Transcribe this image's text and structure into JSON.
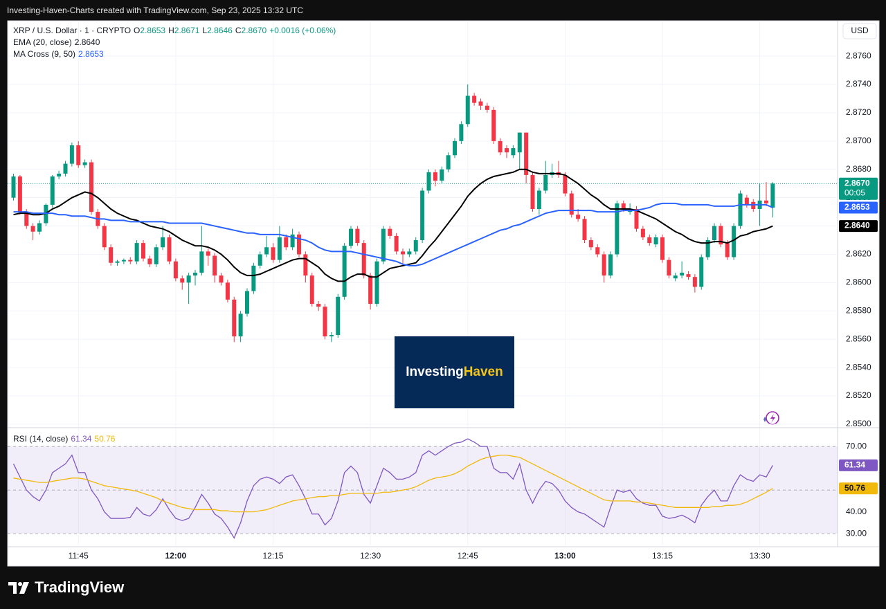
{
  "header": {
    "text": "Investing-Haven-Charts created with TradingView.com, Sep 23, 2025 13:32 UTC"
  },
  "chart_data": {
    "type": "candlestick",
    "legend": {
      "symbol": "XRP / U.S. Dollar · 1 · CRYPTO",
      "letters": [
        "O",
        "H",
        "L",
        "C"
      ],
      "close_label": "2.8670",
      "change": "+0.0016 (+0.06%)"
    },
    "currency": "USD",
    "countdown": "00:05",
    "up_color": "#089981",
    "down_color": "#f23645",
    "grid": true,
    "logo": {
      "first": "Investing",
      "second": "Haven"
    },
    "categories": [
      null,
      null,
      null,
      null,
      null,
      null,
      null,
      null,
      null,
      null,
      "11:45",
      null,
      null,
      null,
      null,
      null,
      null,
      null,
      null,
      null,
      null,
      null,
      null,
      null,
      null,
      "12:00",
      null,
      null,
      null,
      null,
      null,
      null,
      null,
      null,
      null,
      null,
      null,
      null,
      null,
      null,
      "12:15",
      null,
      null,
      null,
      null,
      null,
      null,
      null,
      null,
      null,
      null,
      null,
      null,
      null,
      null,
      "12:30",
      null,
      null,
      null,
      null,
      null,
      null,
      null,
      null,
      null,
      null,
      null,
      null,
      null,
      null,
      "12:45",
      null,
      null,
      null,
      null,
      null,
      null,
      null,
      null,
      null,
      null,
      null,
      null,
      null,
      null,
      "13:00",
      null,
      null,
      null,
      null,
      null,
      null,
      null,
      null,
      null,
      null,
      null,
      null,
      null,
      null,
      "13:15",
      null,
      null,
      null,
      null,
      null,
      null,
      null,
      null,
      null,
      null,
      null,
      null,
      null,
      null,
      "13:30",
      null,
      null
    ],
    "open": [
      2.866,
      2.8675,
      2.865,
      2.864,
      2.8636,
      2.8642,
      2.8655,
      2.8675,
      2.8677,
      2.8684,
      2.8697,
      2.8683,
      2.8685,
      2.865,
      2.864,
      2.8625,
      2.8614,
      2.8615,
      2.8616,
      2.8615,
      2.8628,
      2.8617,
      2.8613,
      2.8625,
      2.8632,
      2.8615,
      2.8603,
      2.86,
      2.8605,
      2.8607,
      2.8622,
      2.8619,
      2.8605,
      2.86,
      2.8588,
      2.8562,
      2.8578,
      2.8594,
      2.8612,
      2.862,
      2.8625,
      2.8616,
      2.8632,
      2.8625,
      2.8634,
      2.862,
      2.8605,
      2.8585,
      2.8583,
      2.8562,
      2.8563,
      2.859,
      2.8626,
      2.8638,
      2.8628,
      2.8605,
      2.8585,
      2.8615,
      2.8638,
      2.8633,
      2.8622,
      2.862,
      2.8622,
      2.863,
      2.8665,
      2.8678,
      2.8672,
      2.868,
      2.869,
      2.87,
      2.8712,
      2.8732,
      2.8728,
      2.8725,
      2.8722,
      2.87,
      2.8695,
      2.869,
      2.8692,
      2.8706,
      2.8676,
      2.8652,
      2.8665,
      2.8676,
      2.8678,
      2.8676,
      2.8663,
      2.8648,
      2.8645,
      2.863,
      2.8625,
      2.862,
      2.8605,
      2.862,
      2.8656,
      2.865,
      2.8652,
      2.8638,
      2.8632,
      2.8627,
      2.8632,
      2.8616,
      2.8603,
      2.8605,
      2.8606,
      2.8604,
      2.8597,
      2.8618,
      2.863,
      2.864,
      2.8628,
      2.8618,
      2.864,
      2.866,
      2.8657,
      2.8652,
      2.8658,
      2.8653
    ],
    "high": [
      2.8677,
      2.8676,
      2.8652,
      2.8642,
      2.8644,
      2.8656,
      2.8676,
      2.8679,
      2.8686,
      2.8699,
      2.87,
      2.8687,
      2.8687,
      2.8652,
      2.8642,
      2.8627,
      2.8616,
      2.8617,
      2.8618,
      2.863,
      2.863,
      2.8619,
      2.8627,
      2.864,
      2.8634,
      2.8617,
      2.8605,
      2.8607,
      2.8609,
      2.864,
      2.8624,
      2.8621,
      2.8607,
      2.8602,
      2.859,
      2.858,
      2.8596,
      2.8614,
      2.8622,
      2.8633,
      2.8628,
      2.864,
      2.8634,
      2.8638,
      2.8636,
      2.8622,
      2.8607,
      2.8587,
      2.8585,
      2.8565,
      2.8592,
      2.8628,
      2.864,
      2.864,
      2.863,
      2.8607,
      2.8617,
      2.864,
      2.864,
      2.8635,
      2.8624,
      2.8624,
      2.8632,
      2.8667,
      2.868,
      2.868,
      2.8682,
      2.8692,
      2.8702,
      2.8714,
      2.874,
      2.8734,
      2.873,
      2.8727,
      2.8724,
      2.8702,
      2.8697,
      2.8697,
      2.8706,
      2.8706,
      2.8678,
      2.8667,
      2.8686,
      2.8684,
      2.8686,
      2.8678,
      2.8665,
      2.8652,
      2.8647,
      2.8632,
      2.8627,
      2.8622,
      2.8622,
      2.8658,
      2.8658,
      2.8656,
      2.8654,
      2.864,
      2.8634,
      2.8634,
      2.8634,
      2.8618,
      2.8607,
      2.8615,
      2.8608,
      2.8606,
      2.862,
      2.8632,
      2.8642,
      2.8642,
      2.863,
      2.8642,
      2.8665,
      2.8662,
      2.8659,
      2.867,
      2.8671,
      2.8671
    ],
    "low": [
      2.8658,
      2.8648,
      2.8638,
      2.863,
      2.8634,
      2.864,
      2.8653,
      2.8673,
      2.8675,
      2.8682,
      2.8681,
      2.8681,
      2.8648,
      2.8638,
      2.8623,
      2.8612,
      2.8612,
      2.8613,
      2.8613,
      2.8613,
      2.8615,
      2.8611,
      2.8611,
      2.8623,
      2.8613,
      2.8601,
      2.8595,
      2.8585,
      2.8598,
      2.8605,
      2.8612,
      2.86,
      2.8598,
      2.8586,
      2.8558,
      2.8558,
      2.8576,
      2.8592,
      2.861,
      2.8618,
      2.8614,
      2.8614,
      2.8623,
      2.8623,
      2.8618,
      2.86,
      2.8583,
      2.858,
      2.856,
      2.8558,
      2.8561,
      2.8588,
      2.8624,
      2.8626,
      2.8603,
      2.8581,
      2.8583,
      2.8613,
      2.8631,
      2.862,
      2.8613,
      2.8618,
      2.862,
      2.8628,
      2.8663,
      2.8668,
      2.867,
      2.8678,
      2.8688,
      2.8698,
      2.871,
      2.8725,
      2.8722,
      2.872,
      2.8698,
      2.869,
      2.8688,
      2.8688,
      2.868,
      2.867,
      2.865,
      2.8648,
      2.8663,
      2.8674,
      2.8674,
      2.8661,
      2.8646,
      2.8643,
      2.8628,
      2.8623,
      2.8618,
      2.86,
      2.8603,
      2.8618,
      2.865,
      2.8648,
      2.8636,
      2.863,
      2.8626,
      2.8625,
      2.8614,
      2.8603,
      2.8601,
      2.8603,
      2.8602,
      2.8593,
      2.8595,
      2.8616,
      2.8628,
      2.8625,
      2.8616,
      2.8616,
      2.8638,
      2.8653,
      2.865,
      2.864,
      2.8654,
      2.8646
    ],
    "close": [
      2.8675,
      2.865,
      2.864,
      2.8636,
      2.8642,
      2.8655,
      2.8675,
      2.8677,
      2.8684,
      2.8697,
      2.8683,
      2.8685,
      2.865,
      2.864,
      2.8625,
      2.8614,
      2.8615,
      2.8616,
      2.8615,
      2.8628,
      2.8617,
      2.8613,
      2.8625,
      2.8632,
      2.8615,
      2.8603,
      2.86,
      2.8605,
      2.8607,
      2.8622,
      2.8619,
      2.8605,
      2.86,
      2.8588,
      2.8562,
      2.8578,
      2.8594,
      2.8612,
      2.862,
      2.8625,
      2.8616,
      2.8632,
      2.8625,
      2.8634,
      2.862,
      2.8605,
      2.8585,
      2.8583,
      2.8562,
      2.8563,
      2.859,
      2.8626,
      2.8638,
      2.8628,
      2.8605,
      2.8585,
      2.8615,
      2.8638,
      2.8633,
      2.8622,
      2.862,
      2.8622,
      2.863,
      2.8665,
      2.8678,
      2.8672,
      2.868,
      2.869,
      2.87,
      2.8712,
      2.8732,
      2.8727,
      2.8725,
      2.8722,
      2.87,
      2.8692,
      2.8692,
      2.8695,
      2.8706,
      2.8676,
      2.8652,
      2.8665,
      2.8676,
      2.8678,
      2.8676,
      2.8663,
      2.8648,
      2.8645,
      2.863,
      2.8625,
      2.862,
      2.8605,
      2.862,
      2.8656,
      2.8652,
      2.8652,
      2.8638,
      2.8632,
      2.8628,
      2.8632,
      2.8616,
      2.8605,
      2.8605,
      2.8607,
      2.8604,
      2.8597,
      2.8618,
      2.863,
      2.864,
      2.8627,
      2.8618,
      2.864,
      2.8663,
      2.8655,
      2.8652,
      2.8658,
      2.8656,
      2.867
    ],
    "overlays": [
      {
        "name": "EMA (20, close)",
        "color": "#000000",
        "last_value_label": "2.8640",
        "values": [
          2.8648,
          2.8649,
          2.8649,
          2.8648,
          2.8648,
          2.8649,
          2.8652,
          2.8654,
          2.8657,
          2.866,
          2.8662,
          2.8664,
          2.8663,
          2.866,
          2.8656,
          2.8652,
          2.8649,
          2.8647,
          2.8645,
          2.8644,
          2.8642,
          2.864,
          2.8639,
          2.8638,
          2.8636,
          2.8633,
          2.863,
          2.8628,
          2.8626,
          2.8626,
          2.8625,
          2.8623,
          2.862,
          2.8616,
          2.8611,
          2.8607,
          2.8605,
          2.8605,
          2.8606,
          2.8608,
          2.861,
          2.8612,
          2.8614,
          2.8616,
          2.8617,
          2.8617,
          2.8614,
          2.8611,
          2.8606,
          2.8603,
          2.8601,
          2.8601,
          2.8604,
          2.8606,
          2.8606,
          2.8604,
          2.8604,
          2.8607,
          2.861,
          2.8611,
          2.8612,
          2.8613,
          2.8614,
          2.8619,
          2.8625,
          2.863,
          2.8636,
          2.8642,
          2.8648,
          2.8654,
          2.8661,
          2.8666,
          2.867,
          2.8673,
          2.8675,
          2.8676,
          2.8677,
          2.8678,
          2.868,
          2.868,
          2.8678,
          2.8677,
          2.8677,
          2.8677,
          2.8677,
          2.8676,
          2.8673,
          2.867,
          2.8666,
          2.8662,
          2.8659,
          2.8655,
          2.8652,
          2.8652,
          2.8652,
          2.8652,
          2.8651,
          2.8649,
          2.8647,
          2.8645,
          2.8642,
          2.8639,
          2.8636,
          2.8634,
          2.8631,
          2.8629,
          2.8628,
          2.8628,
          2.8629,
          2.8629,
          2.8628,
          2.863,
          2.8633,
          2.8634,
          2.8636,
          2.8637,
          2.8638,
          2.864
        ]
      },
      {
        "name": "MA Cross (9, 50)",
        "color": "#2962ff",
        "values": [
          2.865,
          2.865,
          2.865,
          2.8649,
          2.8649,
          2.8649,
          2.8649,
          2.8648,
          2.8648,
          2.8647,
          2.8647,
          2.8647,
          2.8646,
          2.8645,
          2.8645,
          2.8644,
          2.8644,
          2.8644,
          2.8643,
          2.8643,
          2.8643,
          2.8643,
          2.8643,
          2.8643,
          2.8642,
          2.8642,
          2.8642,
          2.8642,
          2.8642,
          2.8642,
          2.8641,
          2.864,
          2.8639,
          2.8638,
          2.8637,
          2.8636,
          2.8635,
          2.8635,
          2.8634,
          2.8634,
          2.8634,
          2.8634,
          2.8633,
          2.8632,
          2.8631,
          2.863,
          2.8628,
          2.8625,
          2.8623,
          2.8622,
          2.8622,
          2.8622,
          2.8622,
          2.8621,
          2.862,
          2.8619,
          2.8618,
          2.8617,
          2.8616,
          2.8615,
          2.8613,
          2.8612,
          2.8612,
          2.8613,
          2.8615,
          2.8617,
          2.8619,
          2.8621,
          2.8623,
          2.8625,
          2.8627,
          2.8629,
          2.8631,
          2.8633,
          2.8635,
          2.8637,
          2.8638,
          2.864,
          2.8641,
          2.8643,
          2.8645,
          2.8647,
          2.8649,
          2.865,
          2.8651,
          2.8651,
          2.8651,
          2.8651,
          2.8651,
          2.8651,
          2.865,
          2.865,
          2.865,
          2.865,
          2.8651,
          2.8651,
          2.8651,
          2.8652,
          2.8653,
          2.8655,
          2.8656,
          2.8656,
          2.8656,
          2.8655,
          2.8655,
          2.8655,
          2.8655,
          2.8655,
          2.8654,
          2.8654,
          2.8654,
          2.8654,
          2.8655,
          2.8655,
          2.8655,
          2.8655,
          2.8655,
          2.8653
        ]
      }
    ],
    "ylim": [
      2.8498,
      2.8785
    ],
    "yticks": [
      {
        "value": 2.85,
        "label": "2.8500"
      },
      {
        "value": 2.852,
        "label": "2.8520"
      },
      {
        "value": 2.854,
        "label": "2.8540"
      },
      {
        "value": 2.856,
        "label": "2.8560"
      },
      {
        "value": 2.858,
        "label": "2.8580"
      },
      {
        "value": 2.86,
        "label": "2.8600"
      },
      {
        "value": 2.862,
        "label": "2.8620"
      },
      {
        "value": 2.864,
        "label": "2.8640"
      },
      {
        "value": 2.866,
        "label": "2.8660"
      },
      {
        "value": 2.868,
        "label": "2.8680"
      },
      {
        "value": 2.87,
        "label": "2.8700"
      },
      {
        "value": 2.872,
        "label": "2.8720"
      },
      {
        "value": 2.874,
        "label": "2.8740"
      },
      {
        "value": 2.876,
        "label": "2.8760"
      }
    ],
    "rsi": {
      "type": "line",
      "title": "RSI (14, close)",
      "ylim": [
        24,
        78.3
      ],
      "yticks": [
        {
          "value": 70,
          "label": "70.00"
        },
        {
          "value": 40,
          "label": "40.00"
        },
        {
          "value": 30,
          "label": "30.00"
        }
      ],
      "levels": [
        70,
        50,
        30
      ],
      "band": [
        30,
        70
      ],
      "series": [
        {
          "color": "#7e57c2",
          "values": [
            62,
            56,
            50,
            47,
            45,
            50,
            58,
            60,
            62,
            66,
            58,
            58,
            50,
            46,
            40,
            37,
            37,
            37,
            37.5,
            42,
            39,
            38,
            41,
            46,
            41,
            37,
            36,
            37,
            42,
            48,
            44,
            39,
            37,
            33,
            28,
            35,
            45,
            52,
            55,
            56,
            55,
            53,
            56,
            57,
            52,
            46,
            39,
            39,
            34,
            37,
            45,
            58,
            61,
            58,
            48,
            44,
            52,
            60,
            58,
            55,
            55,
            56,
            58,
            66,
            68,
            66,
            68,
            70,
            71.5,
            72,
            73.5,
            72,
            70,
            70,
            60,
            58,
            58,
            55,
            62,
            50,
            44,
            50,
            54,
            53,
            50,
            45,
            42,
            40,
            39,
            37,
            35,
            33,
            42,
            50,
            49,
            50,
            46,
            44,
            43,
            43,
            38,
            37,
            37.5,
            38.5,
            37,
            35,
            43,
            47,
            50,
            45,
            45,
            52,
            57,
            55,
            54,
            57,
            56,
            61.34
          ]
        },
        {
          "color": "#f0b90b",
          "values": [
            55.5,
            55,
            54.5,
            54,
            53.5,
            53.5,
            54,
            54.5,
            55,
            55.5,
            55.5,
            55,
            54,
            53,
            52,
            51.5,
            51,
            50.5,
            50,
            49.5,
            48.5,
            47.5,
            46.5,
            45,
            44,
            43,
            42,
            41.5,
            41,
            41,
            41,
            41,
            40.5,
            40.5,
            40,
            40,
            40,
            40,
            40.5,
            41,
            42,
            43,
            44,
            45,
            45.5,
            46,
            46.5,
            47,
            47,
            47.5,
            47.5,
            48,
            48.5,
            48.5,
            48.5,
            48.5,
            48.5,
            49,
            49,
            49.5,
            50,
            50.5,
            51.5,
            53,
            54.5,
            55.5,
            56,
            56.5,
            57.5,
            59,
            61,
            62.5,
            64,
            65,
            65.5,
            66,
            66,
            65.5,
            65,
            63.5,
            62,
            60.5,
            59,
            57.5,
            56,
            54.5,
            53,
            51.5,
            50,
            48.5,
            47,
            45.5,
            45,
            45,
            45,
            45,
            44.5,
            44.5,
            44,
            43.5,
            43,
            42.5,
            42,
            42,
            42,
            42,
            42,
            42,
            42.5,
            42.5,
            43,
            43,
            43.5,
            44.5,
            46,
            47.5,
            49,
            50.76
          ]
        }
      ]
    }
  },
  "footer": {
    "brand": "TradingView"
  }
}
